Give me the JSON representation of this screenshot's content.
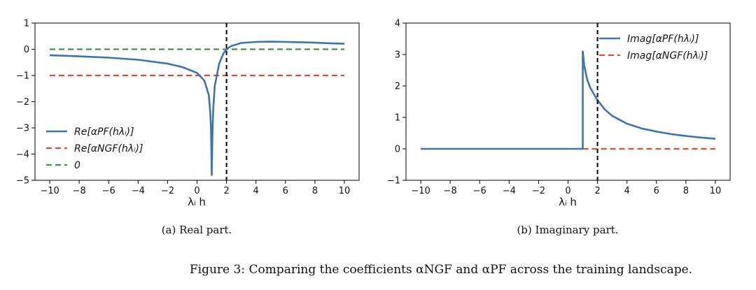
{
  "chart_data": [
    {
      "type": "line",
      "caption": "(a) Real part.",
      "xlabel": "λᵢ h",
      "ylabel": "",
      "xlim": [
        -11,
        11
      ],
      "ylim": [
        -5,
        1
      ],
      "xticks": [
        -10,
        -8,
        -6,
        -4,
        -2,
        0,
        2,
        4,
        6,
        8,
        10
      ],
      "yticks": [
        -5,
        -4,
        -3,
        -2,
        -1,
        0,
        1
      ],
      "xtick_labels": [
        "−10",
        "−8",
        "−6",
        "−4",
        "−2",
        "0",
        "2",
        "4",
        "6",
        "8",
        "10"
      ],
      "ytick_labels": [
        "−5",
        "−4",
        "−3",
        "−2",
        "−1",
        "0",
        "1"
      ],
      "vline": 2,
      "legend_position": "lower-left",
      "series": [
        {
          "name": "Re[αPF(hλᵢ)]",
          "color": "#3b75af",
          "style": "solid",
          "x": [
            -10,
            -8,
            -6,
            -4,
            -2,
            -1,
            0,
            0.5,
            0.8,
            0.9,
            0.95,
            1.0,
            1.05,
            1.1,
            1.2,
            1.5,
            1.8,
            2.0,
            2.3,
            3,
            4,
            5,
            6,
            7,
            8,
            9,
            10
          ],
          "y": [
            -0.23,
            -0.27,
            -0.32,
            -0.4,
            -0.55,
            -0.68,
            -0.9,
            -1.2,
            -1.75,
            -2.4,
            -3.1,
            -4.8,
            -3.1,
            -2.3,
            -1.4,
            -0.55,
            -0.15,
            0.0,
            0.12,
            0.24,
            0.28,
            0.29,
            0.28,
            0.27,
            0.25,
            0.23,
            0.21
          ]
        },
        {
          "name": "Re[αNGF(hλᵢ)]",
          "color": "#e34a33",
          "style": "dashed",
          "x": [
            -10,
            10
          ],
          "y": [
            -1,
            -1
          ]
        },
        {
          "name": "0",
          "color": "#3a9a3a",
          "style": "dashed",
          "x": [
            -10,
            10
          ],
          "y": [
            0,
            0
          ]
        }
      ]
    },
    {
      "type": "line",
      "caption": "(b) Imaginary part.",
      "xlabel": "λᵢ h",
      "ylabel": "",
      "xlim": [
        -11,
        11
      ],
      "ylim": [
        -1,
        4
      ],
      "xticks": [
        -10,
        -8,
        -6,
        -4,
        -2,
        0,
        2,
        4,
        6,
        8,
        10
      ],
      "yticks": [
        -1,
        0,
        1,
        2,
        3,
        4
      ],
      "xtick_labels": [
        "−10",
        "−8",
        "−6",
        "−4",
        "−2",
        "0",
        "2",
        "4",
        "6",
        "8",
        "10"
      ],
      "ytick_labels": [
        "−1",
        "0",
        "1",
        "2",
        "3",
        "4"
      ],
      "vline": 2,
      "legend_position": "top-right",
      "series": [
        {
          "name": "Imag[αPF(hλᵢ)]",
          "color": "#3b75af",
          "style": "solid",
          "x": [
            -10,
            1.0,
            1.0,
            1.1,
            1.3,
            1.5,
            1.8,
            2.0,
            2.5,
            3,
            4,
            5,
            6,
            7,
            8,
            9,
            10
          ],
          "y": [
            0,
            0,
            3.1,
            2.65,
            2.2,
            1.95,
            1.7,
            1.55,
            1.25,
            1.05,
            0.8,
            0.65,
            0.55,
            0.47,
            0.41,
            0.36,
            0.32
          ]
        },
        {
          "name": "Imag[αNGF(hλᵢ)]",
          "color": "#e34a33",
          "style": "dashed",
          "x": [
            1.0,
            10
          ],
          "y": [
            0,
            0
          ]
        }
      ]
    }
  ],
  "figure_caption": "Figure 3: Comparing the coefficients αNGF and αPF across the training landscape."
}
